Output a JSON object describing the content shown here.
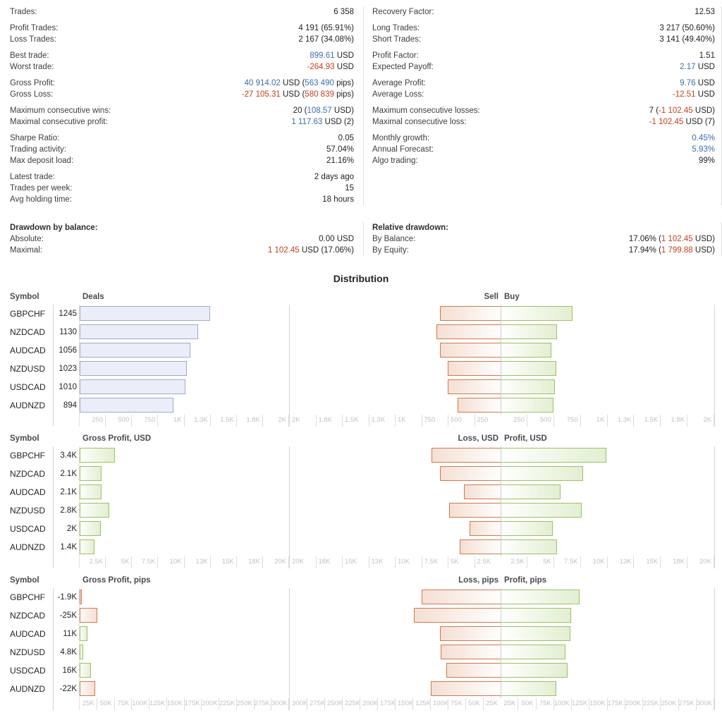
{
  "stats": {
    "left_groups": [
      {
        "rows": [
          {
            "label": "Trades:",
            "value": [
              [
                "6 358",
                ""
              ]
            ]
          }
        ]
      },
      {
        "rows": [
          {
            "label": "Profit Trades:",
            "value": [
              [
                "4 191 (65.91%)",
                ""
              ]
            ]
          },
          {
            "label": "Loss Trades:",
            "value": [
              [
                "2 167 (34.08%)",
                ""
              ]
            ]
          }
        ]
      },
      {
        "rows": [
          {
            "label": "Best trade:",
            "value": [
              [
                "899.61",
                "b"
              ],
              [
                " USD",
                ""
              ]
            ]
          },
          {
            "label": "Worst trade:",
            "value": [
              [
                "-264.93",
                "r"
              ],
              [
                " USD",
                ""
              ]
            ]
          }
        ]
      },
      {
        "rows": [
          {
            "label": "Gross Profit:",
            "value": [
              [
                "40 914.02",
                "b"
              ],
              [
                " USD (",
                ""
              ],
              [
                "563 490",
                "b"
              ],
              [
                " pips)",
                ""
              ]
            ]
          },
          {
            "label": "Gross Loss:",
            "value": [
              [
                "-27 105.31",
                "r"
              ],
              [
                " USD (",
                ""
              ],
              [
                "580 839",
                "r"
              ],
              [
                " pips)",
                ""
              ]
            ]
          }
        ]
      },
      {
        "rows": [
          {
            "label": "Maximum consecutive wins:",
            "value": [
              [
                "20 (",
                ""
              ],
              [
                "108.57",
                "b"
              ],
              [
                " USD)",
                ""
              ]
            ]
          },
          {
            "label": "Maximal consecutive profit:",
            "value": [
              [
                "1 117.63",
                "b"
              ],
              [
                " USD (2)",
                ""
              ]
            ]
          }
        ]
      },
      {
        "rows": [
          {
            "label": "Sharpe Ratio:",
            "value": [
              [
                "0.05",
                ""
              ]
            ]
          },
          {
            "label": "Trading activity:",
            "value": [
              [
                "57.04%",
                ""
              ]
            ]
          },
          {
            "label": "Max deposit load:",
            "value": [
              [
                "21.16%",
                ""
              ]
            ]
          }
        ]
      },
      {
        "rows": [
          {
            "label": "Latest trade:",
            "value": [
              [
                "2 days ago",
                ""
              ]
            ]
          },
          {
            "label": "Trades per week:",
            "value": [
              [
                "15",
                ""
              ]
            ]
          },
          {
            "label": "Avg holding time:",
            "value": [
              [
                "18 hours",
                ""
              ]
            ]
          }
        ]
      }
    ],
    "right_groups": [
      {
        "rows": [
          {
            "label": "Recovery Factor:",
            "value": [
              [
                "12.53",
                ""
              ]
            ]
          }
        ]
      },
      {
        "rows": [
          {
            "label": "Long Trades:",
            "value": [
              [
                "3 217 (50.60%)",
                ""
              ]
            ]
          },
          {
            "label": "Short Trades:",
            "value": [
              [
                "3 141 (49.40%)",
                ""
              ]
            ]
          }
        ]
      },
      {
        "rows": [
          {
            "label": "Profit Factor:",
            "value": [
              [
                "1.51",
                ""
              ]
            ]
          },
          {
            "label": "Expected Payoff:",
            "value": [
              [
                "2.17",
                "b"
              ],
              [
                " USD",
                ""
              ]
            ]
          }
        ]
      },
      {
        "rows": [
          {
            "label": "Average Profit:",
            "value": [
              [
                "9.76",
                "b"
              ],
              [
                " USD",
                ""
              ]
            ]
          },
          {
            "label": "Average Loss:",
            "value": [
              [
                "-12.51",
                "r"
              ],
              [
                " USD",
                ""
              ]
            ]
          }
        ]
      },
      {
        "rows": [
          {
            "label": "Maximum consecutive losses:",
            "value": [
              [
                "7 (",
                ""
              ],
              [
                "-1 102.45",
                "r"
              ],
              [
                " USD)",
                ""
              ]
            ]
          },
          {
            "label": "Maximal consecutive loss:",
            "value": [
              [
                "-1 102.45",
                "r"
              ],
              [
                " USD (7)",
                ""
              ]
            ]
          }
        ]
      },
      {
        "rows": [
          {
            "label": "Monthly growth:",
            "value": [
              [
                "0.45%",
                "b"
              ]
            ]
          },
          {
            "label": "Annual Forecast:",
            "value": [
              [
                "5.93%",
                "b"
              ]
            ]
          },
          {
            "label": "Algo trading:",
            "value": [
              [
                "99%",
                ""
              ]
            ]
          }
        ]
      }
    ],
    "drawdown_left": {
      "header": "Drawdown by balance:",
      "rows": [
        {
          "label": "Absolute:",
          "value": [
            [
              "0.00 USD",
              ""
            ]
          ]
        },
        {
          "label": "Maximal:",
          "value": [
            [
              "1 102.45",
              "r"
            ],
            [
              " USD (17.06%)",
              ""
            ]
          ]
        }
      ]
    },
    "drawdown_right": {
      "header": "Relative drawdown:",
      "rows": [
        {
          "label": "By Balance:",
          "value": [
            [
              "17.06% (",
              ""
            ],
            [
              "1 102.45",
              "r"
            ],
            [
              " USD)",
              ""
            ]
          ]
        },
        {
          "label": "By Equity:",
          "value": [
            [
              "17.94% (",
              ""
            ],
            [
              "1 799.88",
              "r"
            ],
            [
              " USD)",
              ""
            ]
          ]
        }
      ]
    }
  },
  "distribution": {
    "title": "Distribution"
  },
  "chart_data": [
    {
      "type": "bar",
      "symbol_header": "Symbol",
      "left_title": "Deals",
      "neg_title": "Sell",
      "pos_title": "Buy",
      "axis_max": 2000,
      "left_bar_style": "blue",
      "left_ticks": [
        "250",
        "500",
        "750",
        "1K",
        "1.3K",
        "1.5K",
        "1.8K",
        "2K"
      ],
      "right_ticks_desc": [
        "2K",
        "1.8K",
        "1.5K",
        "1.3K",
        "1K",
        "750",
        "500",
        "250"
      ],
      "right_ticks_asc": [
        "250",
        "500",
        "750",
        "1K",
        "1.3K",
        "1.5K",
        "1.8K",
        "2K"
      ],
      "rows": [
        {
          "symbol": "GBPCHF",
          "left_label": "1245",
          "left_value": 1245,
          "neg_value": 580,
          "pos_value": 675
        },
        {
          "symbol": "NZDCAD",
          "left_label": "1130",
          "left_value": 1130,
          "neg_value": 615,
          "pos_value": 525
        },
        {
          "symbol": "AUDCAD",
          "left_label": "1056",
          "left_value": 1056,
          "neg_value": 580,
          "pos_value": 476
        },
        {
          "symbol": "NZDUSD",
          "left_label": "1023",
          "left_value": 1023,
          "neg_value": 505,
          "pos_value": 520
        },
        {
          "symbol": "USDCAD",
          "left_label": "1010",
          "left_value": 1010,
          "neg_value": 505,
          "pos_value": 505
        },
        {
          "symbol": "AUDNZD",
          "left_label": "894",
          "left_value": 894,
          "neg_value": 415,
          "pos_value": 490
        }
      ]
    },
    {
      "type": "bar",
      "symbol_header": "Symbol",
      "left_title": "Gross Profit, USD",
      "neg_title": "Loss, USD",
      "pos_title": "Profit, USD",
      "axis_max": 20000,
      "left_bar_style": "signed",
      "left_ticks": [
        "2.5K",
        "5K",
        "7.5K",
        "10K",
        "13K",
        "15K",
        "18K",
        "20K"
      ],
      "right_ticks_desc": [
        "20K",
        "18K",
        "15K",
        "13K",
        "10K",
        "7.5K",
        "5K",
        "2.5K"
      ],
      "right_ticks_asc": [
        "2.5K",
        "5K",
        "7.5K",
        "10K",
        "13K",
        "15K",
        "18K",
        "20K"
      ],
      "rows": [
        {
          "symbol": "GBPCHF",
          "left_label": "3.4K",
          "left_value": 3400,
          "neg_value": 6600,
          "pos_value": 9900
        },
        {
          "symbol": "NZDCAD",
          "left_label": "2.1K",
          "left_value": 2100,
          "neg_value": 5800,
          "pos_value": 7700
        },
        {
          "symbol": "AUDCAD",
          "left_label": "2.1K",
          "left_value": 2100,
          "neg_value": 3550,
          "pos_value": 5600
        },
        {
          "symbol": "NZDUSD",
          "left_label": "2.8K",
          "left_value": 2800,
          "neg_value": 4900,
          "pos_value": 7600
        },
        {
          "symbol": "USDCAD",
          "left_label": "2K",
          "left_value": 2000,
          "neg_value": 3000,
          "pos_value": 4850
        },
        {
          "symbol": "AUDNZD",
          "left_label": "1.4K",
          "left_value": 1400,
          "neg_value": 3950,
          "pos_value": 5250
        }
      ]
    },
    {
      "type": "bar",
      "symbol_header": "Symbol",
      "left_title": "Gross Profit, pips",
      "neg_title": "Loss, pips",
      "pos_title": "Profit, pips",
      "axis_max": 300000,
      "left_bar_style": "signed",
      "left_ticks": [
        "25K",
        "50K",
        "75K",
        "100K",
        "125K",
        "150K",
        "175K",
        "200K",
        "225K",
        "250K",
        "275K",
        "300K"
      ],
      "right_ticks_desc": [
        "300K",
        "275K",
        "250K",
        "225K",
        "200K",
        "175K",
        "150K",
        "125K",
        "100K",
        "75K",
        "50K",
        "25K"
      ],
      "right_ticks_asc": [
        "25K",
        "50K",
        "75K",
        "100K",
        "125K",
        "150K",
        "175K",
        "200K",
        "225K",
        "250K",
        "275K",
        "300K"
      ],
      "rows": [
        {
          "symbol": "GBPCHF",
          "left_label": "-1.9K",
          "left_value": -1900,
          "neg_value": 113000,
          "pos_value": 111000
        },
        {
          "symbol": "NZDCAD",
          "left_label": "-25K",
          "left_value": -25000,
          "neg_value": 124000,
          "pos_value": 99000
        },
        {
          "symbol": "AUDCAD",
          "left_label": "11K",
          "left_value": 11000,
          "neg_value": 87000,
          "pos_value": 98000
        },
        {
          "symbol": "NZDUSD",
          "left_label": "4.8K",
          "left_value": 4800,
          "neg_value": 86000,
          "pos_value": 90800
        },
        {
          "symbol": "USDCAD",
          "left_label": "16K",
          "left_value": 16000,
          "neg_value": 78000,
          "pos_value": 94000
        },
        {
          "symbol": "AUDNZD",
          "left_label": "-22K",
          "left_value": -22000,
          "neg_value": 100000,
          "pos_value": 78000
        }
      ]
    }
  ],
  "colors": {
    "accent_blue": "#3c6eaa",
    "accent_red": "#c2401e",
    "deals_bar_fill": "#ebeef8",
    "deals_bar_border": "#9ea9d0",
    "profit_bar_border": "#9fbf66",
    "profit_bar_fill": "#e2efd1",
    "loss_bar_border": "#d0794f",
    "loss_bar_fill": "#f5dfd3"
  }
}
